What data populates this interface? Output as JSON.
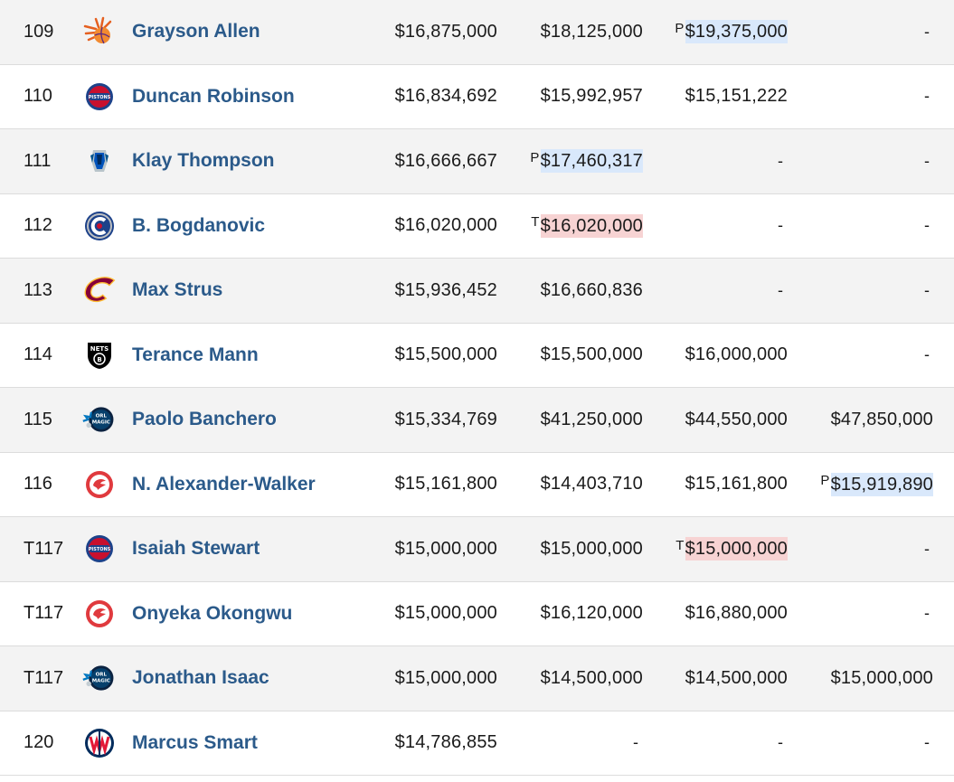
{
  "rows": [
    {
      "rank": "109",
      "name": "Grayson Allen",
      "team_logo": "phoenix-suns-logo",
      "s1": "$16,875,000",
      "s2": "$18,125,000",
      "s3": "$19,375,000",
      "s3_opt": "P",
      "s4": "-"
    },
    {
      "rank": "110",
      "name": "Duncan Robinson",
      "team_logo": "detroit-pistons-logo",
      "s1": "$16,834,692",
      "s2": "$15,992,957",
      "s3": "$15,151,222",
      "s4": "-"
    },
    {
      "rank": "111",
      "name": "Klay Thompson",
      "team_logo": "dallas-mavericks-logo",
      "s1": "$16,666,667",
      "s2": "$17,460,317",
      "s2_opt": "P",
      "s3": "-",
      "s4": "-"
    },
    {
      "rank": "112",
      "name": "B. Bogdanovic",
      "team_logo": "la-clippers-logo",
      "s1": "$16,020,000",
      "s2": "$16,020,000",
      "s2_opt": "T",
      "s3": "-",
      "s4": "-"
    },
    {
      "rank": "113",
      "name": "Max Strus",
      "team_logo": "cleveland-cavaliers-logo",
      "s1": "$15,936,452",
      "s2": "$16,660,836",
      "s3": "-",
      "s4": "-"
    },
    {
      "rank": "114",
      "name": "Terance Mann",
      "team_logo": "brooklyn-nets-logo",
      "s1": "$15,500,000",
      "s2": "$15,500,000",
      "s3": "$16,000,000",
      "s4": "-"
    },
    {
      "rank": "115",
      "name": "Paolo Banchero",
      "team_logo": "orlando-magic-logo",
      "s1": "$15,334,769",
      "s2": "$41,250,000",
      "s3": "$44,550,000",
      "s4": "$47,850,000"
    },
    {
      "rank": "116",
      "name": "N. Alexander-Walker",
      "team_logo": "atlanta-hawks-logo",
      "s1": "$15,161,800",
      "s2": "$14,403,710",
      "s3": "$15,161,800",
      "s4": "$15,919,890",
      "s4_opt": "P"
    },
    {
      "rank": "T117",
      "name": "Isaiah Stewart",
      "team_logo": "detroit-pistons-logo",
      "s1": "$15,000,000",
      "s2": "$15,000,000",
      "s3": "$15,000,000",
      "s3_opt": "T",
      "s4": "-"
    },
    {
      "rank": "T117",
      "name": "Onyeka Okongwu",
      "team_logo": "atlanta-hawks-logo",
      "s1": "$15,000,000",
      "s2": "$16,120,000",
      "s3": "$16,880,000",
      "s4": "-"
    },
    {
      "rank": "T117",
      "name": "Jonathan Isaac",
      "team_logo": "orlando-magic-logo",
      "s1": "$15,000,000",
      "s2": "$14,500,000",
      "s3": "$14,500,000",
      "s4": "$15,000,000"
    },
    {
      "rank": "120",
      "name": "Marcus Smart",
      "team_logo": "washington-wizards-logo",
      "s1": "$14,786,855",
      "s2": "-",
      "s3": "-",
      "s4": "-"
    }
  ],
  "colors": {
    "name_link": "#2b5a8a",
    "player_option_bg": "#d9e8fb",
    "team_option_bg": "#f7d3d3",
    "alt_row_bg": "#f3f3f3"
  }
}
